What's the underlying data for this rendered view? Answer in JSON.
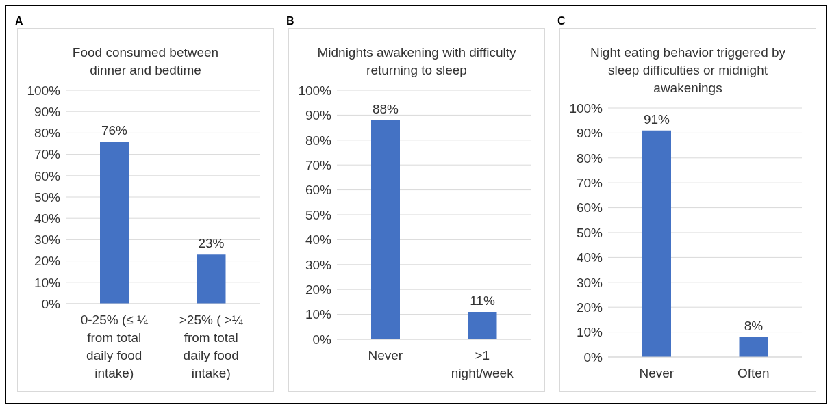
{
  "chart_data": [
    {
      "type": "bar",
      "title": "Food consumed between dinner and bedtime",
      "annotations": [
        "A"
      ],
      "categories": [
        "0-25% (≤ ¼ from total daily food intake)",
        ">25% ( >¼ from total daily food intake)"
      ],
      "values": [
        76,
        23
      ],
      "value_labels": [
        "76%",
        "23%"
      ],
      "color": "#4472c4",
      "ylim": [
        0,
        100
      ],
      "yticks": [
        {
          "value": 0,
          "label": "0%"
        },
        {
          "value": 10,
          "label": "10%"
        },
        {
          "value": 20,
          "label": "20%"
        },
        {
          "value": 30,
          "label": "30%"
        },
        {
          "value": 40,
          "label": "40%"
        },
        {
          "value": 50,
          "label": "50%"
        },
        {
          "value": 60,
          "label": "60%"
        },
        {
          "value": 70,
          "label": "70%"
        },
        {
          "value": 80,
          "label": "80%"
        },
        {
          "value": 90,
          "label": "90%"
        },
        {
          "value": 100,
          "label": "100%"
        }
      ],
      "grid": "y"
    },
    {
      "type": "bar",
      "title": "Midnights awakening with difficulty returning to sleep",
      "annotations": [
        "B"
      ],
      "categories": [
        "Never",
        ">1 night/week"
      ],
      "values": [
        88,
        11
      ],
      "value_labels": [
        "88%",
        "11%"
      ],
      "color": "#4472c4",
      "ylim": [
        0,
        100
      ],
      "yticks": [
        {
          "value": 0,
          "label": "0%"
        },
        {
          "value": 10,
          "label": "10%"
        },
        {
          "value": 20,
          "label": "20%"
        },
        {
          "value": 30,
          "label": "30%"
        },
        {
          "value": 40,
          "label": "40%"
        },
        {
          "value": 50,
          "label": "50%"
        },
        {
          "value": 60,
          "label": "60%"
        },
        {
          "value": 70,
          "label": "70%"
        },
        {
          "value": 80,
          "label": "80%"
        },
        {
          "value": 90,
          "label": "90%"
        },
        {
          "value": 100,
          "label": "100%"
        }
      ],
      "grid": "y"
    },
    {
      "type": "bar",
      "title": "Night eating behavior triggered by sleep difficulties or midnight awakenings",
      "annotations": [
        "C"
      ],
      "categories": [
        "Never",
        "Often"
      ],
      "values": [
        91,
        8
      ],
      "value_labels": [
        "91%",
        "8%"
      ],
      "color": "#4472c4",
      "ylim": [
        0,
        100
      ],
      "yticks": [
        {
          "value": 0,
          "label": "0%"
        },
        {
          "value": 10,
          "label": "10%"
        },
        {
          "value": 20,
          "label": "20%"
        },
        {
          "value": 30,
          "label": "30%"
        },
        {
          "value": 40,
          "label": "40%"
        },
        {
          "value": 50,
          "label": "50%"
        },
        {
          "value": 60,
          "label": "60%"
        },
        {
          "value": 70,
          "label": "70%"
        },
        {
          "value": 80,
          "label": "80%"
        },
        {
          "value": 90,
          "label": "90%"
        },
        {
          "value": 100,
          "label": "100%"
        }
      ],
      "grid": "y"
    }
  ]
}
